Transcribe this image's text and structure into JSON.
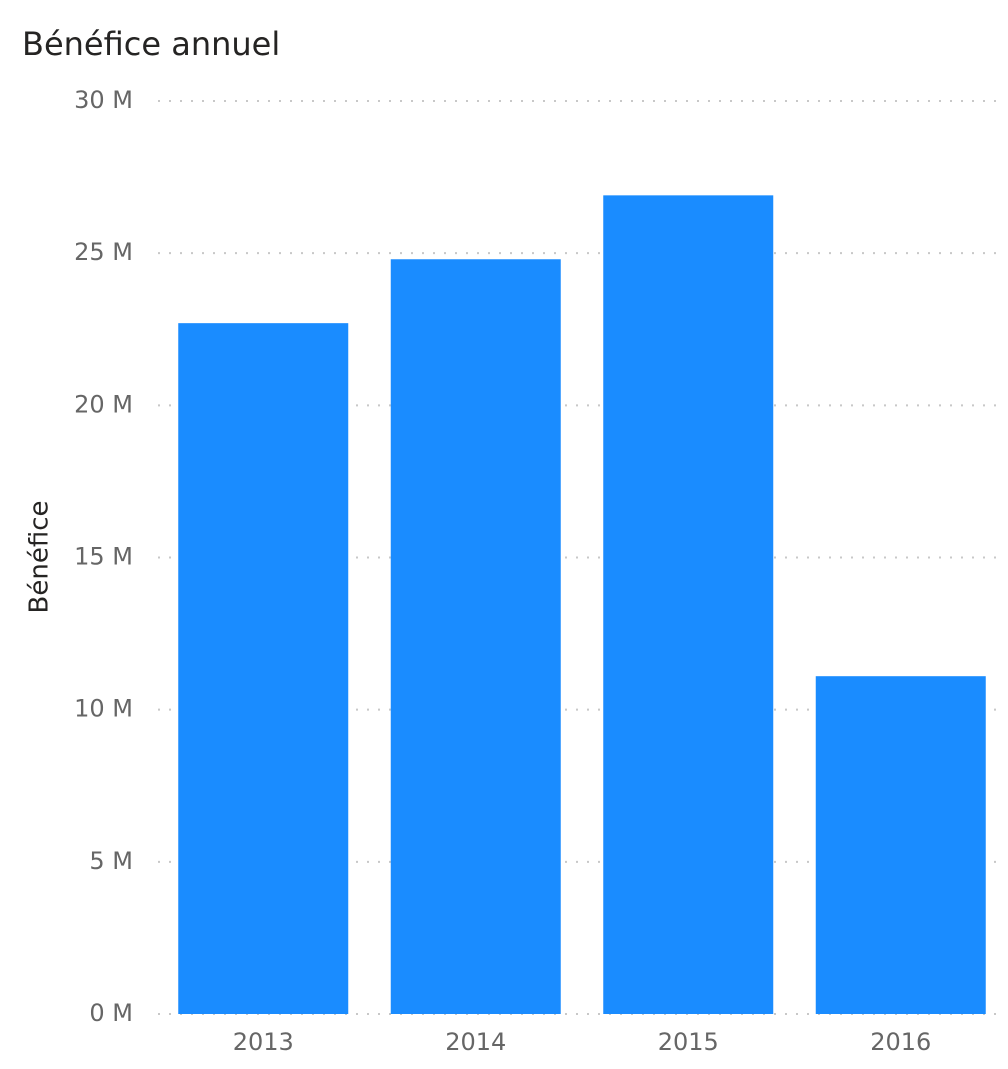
{
  "chart_data": {
    "type": "bar",
    "title": "Bénéfice annuel",
    "y_label": "Bénéfice",
    "categories": [
      "2013",
      "2014",
      "2015",
      "2016"
    ],
    "values": [
      22.7,
      24.8,
      26.9,
      11.1
    ],
    "color": "#1a8cff",
    "ylim": [
      0,
      30
    ],
    "yticks": [
      {
        "value": 0,
        "label": "0 M"
      },
      {
        "value": 5,
        "label": "5 M"
      },
      {
        "value": 10,
        "label": "10 M"
      },
      {
        "value": 15,
        "label": "15 M"
      },
      {
        "value": 20,
        "label": "20 M"
      },
      {
        "value": 25,
        "label": "25 M"
      },
      {
        "value": 30,
        "label": "30 M"
      }
    ],
    "grid": true
  }
}
